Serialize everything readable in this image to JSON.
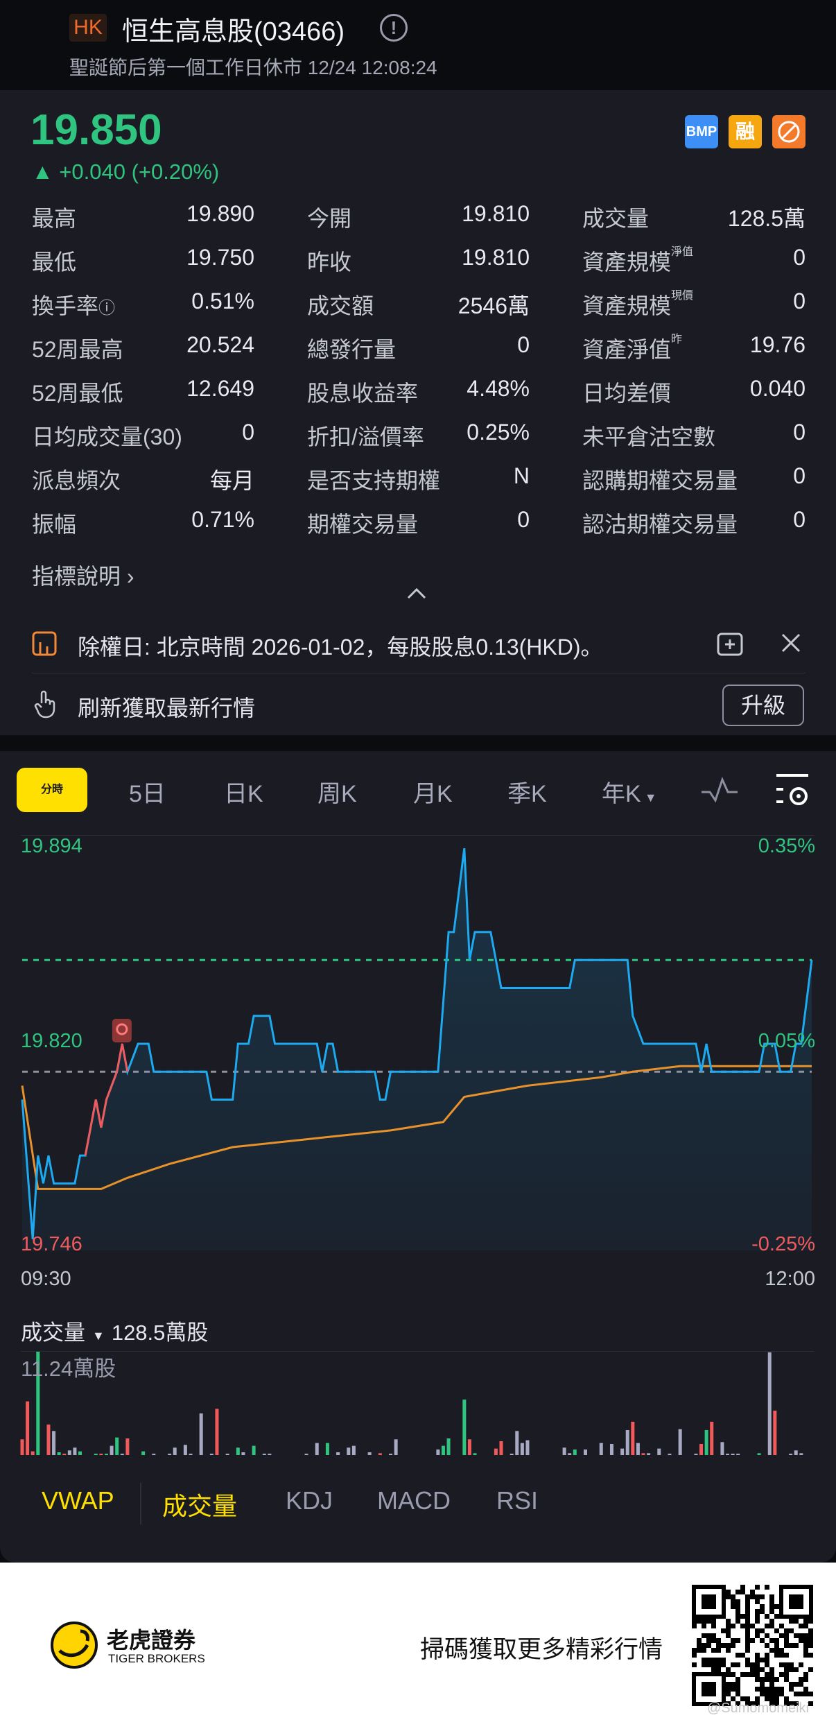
{
  "header": {
    "market": "HK",
    "title": "恒生高息股(03466)",
    "status": "聖誕節后第一個工作日休市 12/24 12:08:24"
  },
  "quote": {
    "price": "19.850",
    "change": "+0.040 (+0.20%)",
    "direction": "up",
    "color_up": "#2fc47f",
    "color_down": "#f05a5a"
  },
  "badges": [
    {
      "label": "BMP",
      "color": "#3d8ef5"
    },
    {
      "label": "融",
      "color": "#f6a60f"
    },
    {
      "label": "",
      "icon": "no-short-icon",
      "color": "#f47a2b"
    }
  ],
  "stats": [
    [
      {
        "label": "最高",
        "value": "19.890"
      },
      {
        "label": "今開",
        "value": "19.810"
      },
      {
        "label": "成交量",
        "value": "128.5萬"
      }
    ],
    [
      {
        "label": "最低",
        "value": "19.750"
      },
      {
        "label": "昨收",
        "value": "19.810"
      },
      {
        "label": "資產規模",
        "sup": "淨值",
        "value": "0"
      }
    ],
    [
      {
        "label": "換手率",
        "info": true,
        "value": "0.51%"
      },
      {
        "label": "成交額",
        "value": "2546萬"
      },
      {
        "label": "資產規模",
        "sup": "現價",
        "value": "0"
      }
    ],
    [
      {
        "label": "52周最高",
        "value": "20.524"
      },
      {
        "label": "總發行量",
        "value": "0"
      },
      {
        "label": "資產淨值",
        "sup": "昨",
        "value": "19.76"
      }
    ],
    [
      {
        "label": "52周最低",
        "value": "12.649"
      },
      {
        "label": "股息收益率",
        "value": "4.48%"
      },
      {
        "label": "日均差價",
        "value": "0.040"
      }
    ],
    [
      {
        "label": "日均成交量(30)",
        "value": "0"
      },
      {
        "label": "折扣/溢價率",
        "value": "0.25%"
      },
      {
        "label": "未平倉沽空數",
        "value": "0"
      }
    ],
    [
      {
        "label": "派息頻次",
        "value": "每月"
      },
      {
        "label": "是否支持期權",
        "value": "N"
      },
      {
        "label": "認購期權交易量",
        "value": "0"
      }
    ],
    [
      {
        "label": "振幅",
        "value": "0.71%"
      },
      {
        "label": "期權交易量",
        "value": "0"
      },
      {
        "label": "認沽期權交易量",
        "value": "0"
      }
    ]
  ],
  "indicator_link": "指標說明 ›",
  "notice": {
    "text": "除權日: 北京時間 2026-01-02，每股股息0.13(HKD)。"
  },
  "refresh": {
    "text": "刷新獲取最新行情",
    "button": "升級"
  },
  "chart_tabs": [
    "分時",
    "5日",
    "日K",
    "周K",
    "月K",
    "季K",
    "年K"
  ],
  "chart_tab_active": "分時",
  "chart_data": {
    "type": "line",
    "xlim": [
      "09:30",
      "12:00"
    ],
    "ylim": [
      19.746,
      19.894
    ],
    "y_left_labels": [
      "19.894",
      "19.820",
      "19.746"
    ],
    "y_right_labels": [
      "0.35%",
      "0.05%",
      "-0.25%"
    ],
    "x_labels": [
      "09:30",
      "12:00"
    ],
    "prev_close": 19.81,
    "last_price": 19.85,
    "highlight_range": [
      "09:42",
      "09:50"
    ],
    "series": [
      {
        "name": "price",
        "color": "#1eaaf0",
        "points": [
          [
            "09:30",
            19.8
          ],
          [
            "09:32",
            19.75
          ],
          [
            "09:33",
            19.78
          ],
          [
            "09:34",
            19.77
          ],
          [
            "09:35",
            19.78
          ],
          [
            "09:36",
            19.77
          ],
          [
            "09:40",
            19.77
          ],
          [
            "09:41",
            19.78
          ],
          [
            "09:42",
            19.78
          ],
          [
            "09:44",
            19.8
          ],
          [
            "09:45",
            19.79
          ],
          [
            "09:46",
            19.8
          ],
          [
            "09:48",
            19.81
          ],
          [
            "09:49",
            19.82
          ],
          [
            "09:50",
            19.81
          ],
          [
            "09:52",
            19.82
          ],
          [
            "09:54",
            19.82
          ],
          [
            "09:55",
            19.81
          ],
          [
            "10:05",
            19.81
          ],
          [
            "10:06",
            19.8
          ],
          [
            "10:10",
            19.8
          ],
          [
            "10:11",
            19.82
          ],
          [
            "10:13",
            19.82
          ],
          [
            "10:14",
            19.83
          ],
          [
            "10:17",
            19.83
          ],
          [
            "10:18",
            19.82
          ],
          [
            "10:26",
            19.82
          ],
          [
            "10:27",
            19.81
          ],
          [
            "10:28",
            19.82
          ],
          [
            "10:29",
            19.82
          ],
          [
            "10:30",
            19.81
          ],
          [
            "10:37",
            19.81
          ],
          [
            "10:38",
            19.8
          ],
          [
            "10:39",
            19.8
          ],
          [
            "10:40",
            19.81
          ],
          [
            "10:49",
            19.81
          ],
          [
            "10:51",
            19.86
          ],
          [
            "10:52",
            19.86
          ],
          [
            "10:54",
            19.89
          ],
          [
            "10:55",
            19.85
          ],
          [
            "10:56",
            19.86
          ],
          [
            "10:59",
            19.86
          ],
          [
            "11:01",
            19.84
          ],
          [
            "11:14",
            19.84
          ],
          [
            "11:15",
            19.85
          ],
          [
            "11:25",
            19.85
          ],
          [
            "11:26",
            19.83
          ],
          [
            "11:28",
            19.82
          ],
          [
            "11:38",
            19.82
          ],
          [
            "11:39",
            19.81
          ],
          [
            "11:40",
            19.82
          ],
          [
            "11:41",
            19.81
          ],
          [
            "11:50",
            19.81
          ],
          [
            "11:51",
            19.82
          ],
          [
            "11:53",
            19.82
          ],
          [
            "11:54",
            19.81
          ],
          [
            "11:56",
            19.81
          ],
          [
            "11:57",
            19.82
          ],
          [
            "11:58",
            19.82
          ],
          [
            "12:00",
            19.85
          ]
        ]
      },
      {
        "name": "VWAP",
        "color": "#e8922b",
        "points": [
          [
            "09:30",
            19.805
          ],
          [
            "09:33",
            19.768
          ],
          [
            "09:45",
            19.768
          ],
          [
            "09:50",
            19.772
          ],
          [
            "09:58",
            19.777
          ],
          [
            "10:10",
            19.783
          ],
          [
            "10:30",
            19.787
          ],
          [
            "10:40",
            19.789
          ],
          [
            "10:50",
            19.792
          ],
          [
            "10:54",
            19.801
          ],
          [
            "11:06",
            19.805
          ],
          [
            "11:20",
            19.808
          ],
          [
            "11:26",
            19.81
          ],
          [
            "11:35",
            19.812
          ],
          [
            "12:00",
            19.812
          ]
        ]
      }
    ],
    "volume": {
      "label": "成交量",
      "total": "128.5萬股",
      "max_label": "11.24萬股",
      "max": 11.24,
      "unit": "萬股",
      "colors": {
        "u": "#2fc47f",
        "d": "#f05a5a",
        "n": "#a8aac4"
      },
      "bars": [
        [
          "09:30",
          1.7,
          "d"
        ],
        [
          "09:31",
          5.8,
          "d"
        ],
        [
          "09:32",
          0.4,
          "d"
        ],
        [
          "09:33",
          11.24,
          "u"
        ],
        [
          "09:35",
          3.3,
          "d"
        ],
        [
          "09:36",
          2.6,
          "n"
        ],
        [
          "09:37",
          0.3,
          "u"
        ],
        [
          "09:38",
          0.1,
          "d"
        ],
        [
          "09:39",
          0.5,
          "n"
        ],
        [
          "09:40",
          0.8,
          "n"
        ],
        [
          "09:41",
          0.4,
          "u"
        ],
        [
          "09:44",
          0.1,
          "u"
        ],
        [
          "09:45",
          0.1,
          "d"
        ],
        [
          "09:46",
          0.1,
          "u"
        ],
        [
          "09:47",
          1.0,
          "n"
        ],
        [
          "09:48",
          1.9,
          "u"
        ],
        [
          "09:49",
          0.1,
          "n"
        ],
        [
          "09:50",
          1.8,
          "d"
        ],
        [
          "09:53",
          0.4,
          "u"
        ],
        [
          "09:55",
          0.1,
          "n"
        ],
        [
          "09:58",
          0.1,
          "n"
        ],
        [
          "09:59",
          0.8,
          "n"
        ],
        [
          "10:01",
          1.1,
          "n"
        ],
        [
          "10:02",
          0.1,
          "n"
        ],
        [
          "10:04",
          4.5,
          "n"
        ],
        [
          "10:06",
          0.1,
          "n"
        ],
        [
          "10:07",
          5.0,
          "d"
        ],
        [
          "10:09",
          0.1,
          "n"
        ],
        [
          "10:11",
          0.8,
          "u"
        ],
        [
          "10:12",
          0.3,
          "n"
        ],
        [
          "10:14",
          1.0,
          "u"
        ],
        [
          "10:16",
          0.1,
          "n"
        ],
        [
          "10:17",
          0.1,
          "n"
        ],
        [
          "10:24",
          0.1,
          "n"
        ],
        [
          "10:26",
          1.3,
          "n"
        ],
        [
          "10:28",
          1.3,
          "u"
        ],
        [
          "10:30",
          0.3,
          "n"
        ],
        [
          "10:32",
          0.8,
          "n"
        ],
        [
          "10:33",
          1.0,
          "n"
        ],
        [
          "10:36",
          0.3,
          "n"
        ],
        [
          "10:38",
          0.2,
          "d"
        ],
        [
          "10:40",
          0.1,
          "n"
        ],
        [
          "10:41",
          1.7,
          "n"
        ],
        [
          "10:49",
          0.6,
          "n"
        ],
        [
          "10:50",
          1.0,
          "u"
        ],
        [
          "10:51",
          1.8,
          "u"
        ],
        [
          "10:54",
          6.0,
          "u"
        ],
        [
          "10:55",
          1.7,
          "d"
        ],
        [
          "10:56",
          0.2,
          "u"
        ],
        [
          "11:00",
          0.7,
          "d"
        ],
        [
          "11:01",
          1.5,
          "d"
        ],
        [
          "11:03",
          0.1,
          "n"
        ],
        [
          "11:04",
          2.6,
          "n"
        ],
        [
          "11:05",
          1.3,
          "n"
        ],
        [
          "11:06",
          1.6,
          "n"
        ],
        [
          "11:13",
          0.8,
          "n"
        ],
        [
          "11:14",
          0.2,
          "n"
        ],
        [
          "11:15",
          0.6,
          "u"
        ],
        [
          "11:17",
          0.6,
          "n"
        ],
        [
          "11:20",
          1.3,
          "n"
        ],
        [
          "11:22",
          1.2,
          "n"
        ],
        [
          "11:24",
          0.7,
          "n"
        ],
        [
          "11:25",
          2.7,
          "n"
        ],
        [
          "11:26",
          3.6,
          "d"
        ],
        [
          "11:27",
          1.3,
          "n"
        ],
        [
          "11:28",
          0.2,
          "d"
        ],
        [
          "11:29",
          0.2,
          "n"
        ],
        [
          "11:31",
          0.7,
          "n"
        ],
        [
          "11:33",
          0.1,
          "n"
        ],
        [
          "11:35",
          2.8,
          "n"
        ],
        [
          "11:38",
          0.1,
          "n"
        ],
        [
          "11:39",
          1.2,
          "d"
        ],
        [
          "11:40",
          2.7,
          "u"
        ],
        [
          "11:41",
          3.6,
          "d"
        ],
        [
          "11:43",
          1.4,
          "n"
        ],
        [
          "11:44",
          0.1,
          "n"
        ],
        [
          "11:45",
          0.1,
          "n"
        ],
        [
          "11:46",
          0.1,
          "n"
        ],
        [
          "11:50",
          0.2,
          "u"
        ],
        [
          "11:52",
          11.1,
          "n"
        ],
        [
          "11:53",
          4.8,
          "d"
        ],
        [
          "11:56",
          0.1,
          "n"
        ],
        [
          "11:57",
          0.5,
          "n"
        ],
        [
          "11:58",
          0.2,
          "n"
        ]
      ]
    }
  },
  "indicator_tabs": [
    "VWAP",
    "成交量",
    "KDJ",
    "MACD",
    "RSI"
  ],
  "indicator_active": [
    "VWAP",
    "成交量"
  ],
  "footer": {
    "brand_cn": "老虎證券",
    "brand_en": "TIGER BROKERS",
    "cta": "掃碼獲取更多精彩行情",
    "watermark": "@Sumomomeiki"
  }
}
